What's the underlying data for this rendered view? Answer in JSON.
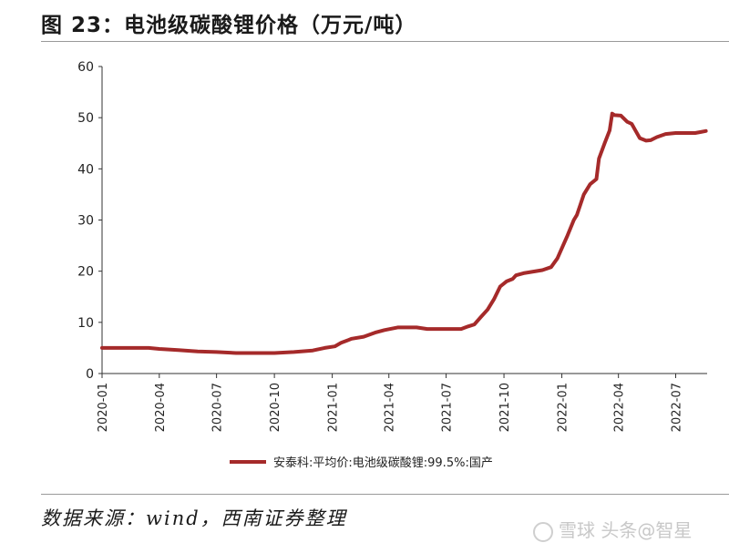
{
  "header": {
    "title": "图 23：电池级碳酸锂价格（万元/吨）"
  },
  "footer": {
    "source": "数据来源：wind，西南证券整理"
  },
  "watermark": {
    "text": "雪球 头条@智星"
  },
  "colors": {
    "line": "#a52a2a",
    "axis": "#333333"
  },
  "chart_data": {
    "type": "line",
    "title": "",
    "xlabel": "",
    "ylabel": "",
    "ylim": [
      0,
      60
    ],
    "yticks": [
      "0",
      "10",
      "20",
      "30",
      "40",
      "50",
      "60"
    ],
    "xlim": [
      "2020-01-01",
      "2022-08-20"
    ],
    "xticks": [
      "2020-01",
      "2020-04",
      "2020-07",
      "2020-10",
      "2021-01",
      "2021-04",
      "2021-07",
      "2021-10",
      "2022-01",
      "2022-04",
      "2022-07"
    ],
    "grid": false,
    "legend_position": "bottom-center",
    "series": [
      {
        "name": "安泰科:平均价:电池级碳酸锂:99.5%:国产",
        "points": [
          [
            "2020-01-01",
            5.0
          ],
          [
            "2020-02-01",
            5.0
          ],
          [
            "2020-03-15",
            5.0
          ],
          [
            "2020-04-01",
            4.8
          ],
          [
            "2020-05-01",
            4.6
          ],
          [
            "2020-06-01",
            4.3
          ],
          [
            "2020-07-01",
            4.2
          ],
          [
            "2020-08-01",
            4.0
          ],
          [
            "2020-09-01",
            4.0
          ],
          [
            "2020-10-01",
            4.0
          ],
          [
            "2020-11-01",
            4.2
          ],
          [
            "2020-12-01",
            4.5
          ],
          [
            "2020-12-20",
            5.0
          ],
          [
            "2021-01-05",
            5.3
          ],
          [
            "2021-01-15",
            6.0
          ],
          [
            "2021-02-01",
            6.8
          ],
          [
            "2021-02-20",
            7.2
          ],
          [
            "2021-03-10",
            8.0
          ],
          [
            "2021-03-25",
            8.5
          ],
          [
            "2021-04-15",
            9.0
          ],
          [
            "2021-05-15",
            9.0
          ],
          [
            "2021-06-01",
            8.7
          ],
          [
            "2021-06-15",
            8.7
          ],
          [
            "2021-07-25",
            8.7
          ],
          [
            "2021-08-05",
            9.2
          ],
          [
            "2021-08-15",
            9.6
          ],
          [
            "2021-08-25",
            11.0
          ],
          [
            "2021-09-05",
            12.5
          ],
          [
            "2021-09-15",
            14.5
          ],
          [
            "2021-09-25",
            17.0
          ],
          [
            "2021-10-05",
            18.0
          ],
          [
            "2021-10-15",
            18.5
          ],
          [
            "2021-10-20",
            19.2
          ],
          [
            "2021-11-01",
            19.6
          ],
          [
            "2021-12-01",
            20.2
          ],
          [
            "2021-12-15",
            20.8
          ],
          [
            "2021-12-25",
            22.5
          ],
          [
            "2022-01-01",
            24.5
          ],
          [
            "2022-01-10",
            27.0
          ],
          [
            "2022-01-20",
            30.0
          ],
          [
            "2022-01-25",
            31.0
          ],
          [
            "2022-02-05",
            35.0
          ],
          [
            "2022-02-15",
            37.0
          ],
          [
            "2022-02-25",
            38.0
          ],
          [
            "2022-03-01",
            42.0
          ],
          [
            "2022-03-10",
            45.0
          ],
          [
            "2022-03-18",
            47.5
          ],
          [
            "2022-03-22",
            50.8
          ],
          [
            "2022-03-26",
            50.5
          ],
          [
            "2022-04-05",
            50.4
          ],
          [
            "2022-04-15",
            49.2
          ],
          [
            "2022-04-22",
            48.8
          ],
          [
            "2022-04-28",
            47.5
          ],
          [
            "2022-05-05",
            46.0
          ],
          [
            "2022-05-15",
            45.5
          ],
          [
            "2022-05-22",
            45.6
          ],
          [
            "2022-06-01",
            46.2
          ],
          [
            "2022-06-15",
            46.8
          ],
          [
            "2022-07-01",
            47.0
          ],
          [
            "2022-07-20",
            47.0
          ],
          [
            "2022-08-01",
            47.0
          ],
          [
            "2022-08-10",
            47.2
          ],
          [
            "2022-08-18",
            47.4
          ]
        ]
      }
    ]
  }
}
